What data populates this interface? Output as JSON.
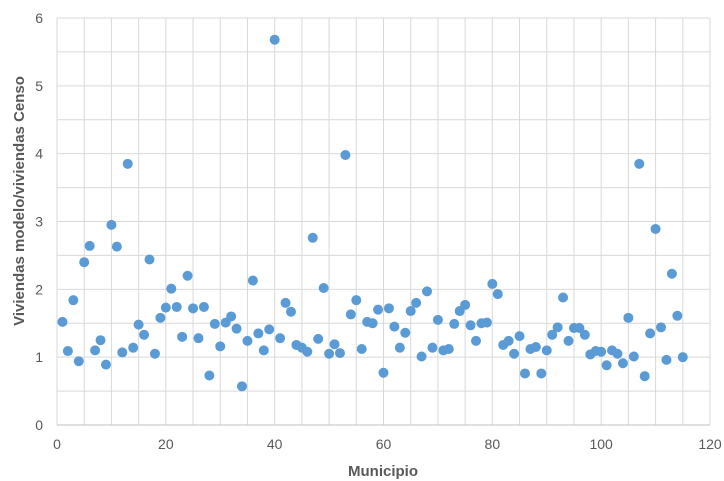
{
  "chart_data": {
    "type": "scatter",
    "title": "",
    "xlabel": "Municipio",
    "ylabel": "Viviendas modelo/viviendas Censo",
    "xlim": [
      0,
      120
    ],
    "ylim": [
      0,
      6
    ],
    "xticks": [
      0,
      20,
      40,
      60,
      80,
      100,
      120
    ],
    "yticks": [
      0,
      1,
      2,
      3,
      4,
      5,
      6
    ],
    "grid": true,
    "legend": "none",
    "colors": {
      "marker": "#5b9bd5",
      "grid": "#d9d9d9",
      "text": "#595959"
    },
    "series": [
      {
        "x": [
          1,
          2,
          3,
          4,
          5,
          6,
          7,
          8,
          9,
          10,
          11,
          12,
          13,
          14,
          15,
          16,
          17,
          18,
          19,
          20,
          21,
          22,
          23,
          24,
          25,
          26,
          27,
          28,
          29,
          30,
          31,
          32,
          33,
          34,
          35,
          36,
          37,
          38,
          39,
          40,
          41,
          42,
          43,
          44,
          45,
          46,
          47,
          48,
          49,
          50,
          51,
          52,
          53,
          54,
          55,
          56,
          57,
          58,
          59,
          60,
          61,
          62,
          63,
          64,
          65,
          66,
          67,
          68,
          69,
          70,
          71,
          72,
          73,
          74,
          75,
          76,
          77,
          78,
          79,
          80,
          81,
          82,
          83,
          84,
          85,
          86,
          87,
          88,
          89,
          90,
          91,
          92,
          93,
          94,
          95,
          96,
          97,
          98,
          99,
          100,
          101,
          102,
          103,
          104,
          105,
          106,
          107,
          108,
          109,
          110,
          111,
          112,
          113,
          114,
          115
        ],
        "y": [
          1.52,
          1.09,
          1.84,
          0.94,
          2.4,
          2.64,
          1.1,
          1.25,
          0.89,
          2.95,
          2.63,
          1.07,
          3.85,
          1.14,
          1.48,
          1.33,
          2.44,
          1.05,
          1.58,
          1.73,
          2.01,
          1.74,
          1.3,
          2.2,
          1.72,
          1.28,
          1.74,
          0.73,
          1.49,
          1.16,
          1.51,
          1.6,
          1.42,
          0.57,
          1.24,
          2.13,
          1.35,
          1.1,
          1.41,
          5.68,
          1.28,
          1.8,
          1.67,
          1.18,
          1.14,
          1.08,
          2.76,
          1.27,
          2.02,
          1.05,
          1.19,
          1.06,
          3.98,
          1.63,
          1.84,
          1.12,
          1.52,
          1.5,
          1.7,
          0.77,
          1.72,
          1.45,
          1.14,
          1.36,
          1.68,
          1.8,
          1.01,
          1.97,
          1.14,
          1.55,
          1.1,
          1.12,
          1.49,
          1.68,
          1.77,
          1.47,
          1.24,
          1.5,
          1.51,
          2.08,
          1.93,
          1.18,
          1.24,
          1.05,
          1.31,
          0.76,
          1.12,
          1.15,
          0.76,
          1.1,
          1.33,
          1.44,
          1.88,
          1.24,
          1.43,
          1.43,
          1.33,
          1.04,
          1.09,
          1.08,
          0.88,
          1.1,
          1.05,
          0.91,
          1.58,
          1.01,
          3.85,
          0.72,
          1.35,
          2.89,
          1.44,
          0.96,
          2.23,
          1.61,
          1.0
        ]
      }
    ]
  }
}
